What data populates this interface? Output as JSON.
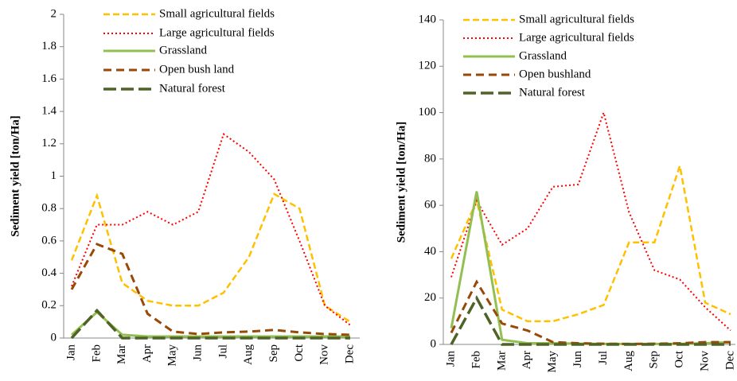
{
  "chart_data": [
    {
      "type": "line",
      "ylabel": "Sediment yield [ton/Ha]",
      "categories": [
        "Jan",
        "Feb",
        "Mar",
        "Apr",
        "May",
        "Jun",
        "Jul",
        "Aug",
        "Sep",
        "Oct",
        "Nov",
        "Dec"
      ],
      "ylim": [
        0,
        2
      ],
      "yticks": [
        0,
        0.2,
        0.4,
        0.6,
        0.8,
        1,
        1.2,
        1.4,
        1.6,
        1.8,
        2
      ],
      "series": [
        {
          "name": "Small agricultural fields",
          "color": "#ffc000",
          "values": [
            0.48,
            0.88,
            0.34,
            0.23,
            0.2,
            0.2,
            0.28,
            0.5,
            0.89,
            0.8,
            0.2,
            0.1
          ]
        },
        {
          "name": "Large agricultural fields",
          "color": "#ff0000",
          "values": [
            0.32,
            0.7,
            0.7,
            0.78,
            0.7,
            0.78,
            1.26,
            1.15,
            0.98,
            0.6,
            0.2,
            0.08
          ]
        },
        {
          "name": "Grassland",
          "color": "#92c050",
          "values": [
            0.02,
            0.16,
            0.02,
            0.01,
            0.01,
            0.01,
            0.01,
            0.01,
            0.01,
            0.01,
            0.01,
            0.01
          ]
        },
        {
          "name": "Open bush land",
          "color": "#984807",
          "values": [
            0.3,
            0.58,
            0.52,
            0.15,
            0.04,
            0.025,
            0.035,
            0.04,
            0.05,
            0.035,
            0.025,
            0.02
          ]
        },
        {
          "name": "Natural forest",
          "color": "#4f6228",
          "values": [
            0,
            0.17,
            0,
            0,
            0,
            0,
            0,
            0,
            0,
            0,
            0,
            0
          ]
        }
      ]
    },
    {
      "type": "line",
      "ylabel": "Sediment yield [ton/Ha]",
      "categories": [
        "Jan",
        "Feb",
        "Mar",
        "Apr",
        "May",
        "Jun",
        "Jul",
        "Aug",
        "Sep",
        "Oct",
        "Nov",
        "Dec"
      ],
      "ylim": [
        0,
        140
      ],
      "yticks": [
        0,
        20,
        40,
        60,
        80,
        100,
        120,
        140
      ],
      "series": [
        {
          "name": "Small agricultural fields",
          "color": "#ffc000",
          "values": [
            37,
            62,
            15,
            10,
            10,
            13,
            17,
            44,
            44,
            77,
            18,
            13
          ]
        },
        {
          "name": "Large agricultural fields",
          "color": "#ff0000",
          "values": [
            29,
            62,
            43,
            50,
            68,
            69,
            100,
            57,
            32,
            28,
            16,
            6
          ]
        },
        {
          "name": "Grassland",
          "color": "#92c050",
          "values": [
            7,
            66,
            2,
            0.5,
            0.5,
            0.3,
            0.2,
            0.2,
            0.2,
            0.2,
            0.5,
            1
          ]
        },
        {
          "name": "Open bushland",
          "color": "#984807",
          "values": [
            5,
            27,
            9,
            6,
            1,
            0.5,
            0.3,
            0.2,
            0.3,
            0.5,
            1,
            1
          ]
        },
        {
          "name": "Natural forest",
          "color": "#4f6228",
          "values": [
            0,
            20,
            0,
            0,
            0,
            0,
            0,
            0,
            0,
            0,
            0,
            0
          ]
        }
      ]
    }
  ]
}
